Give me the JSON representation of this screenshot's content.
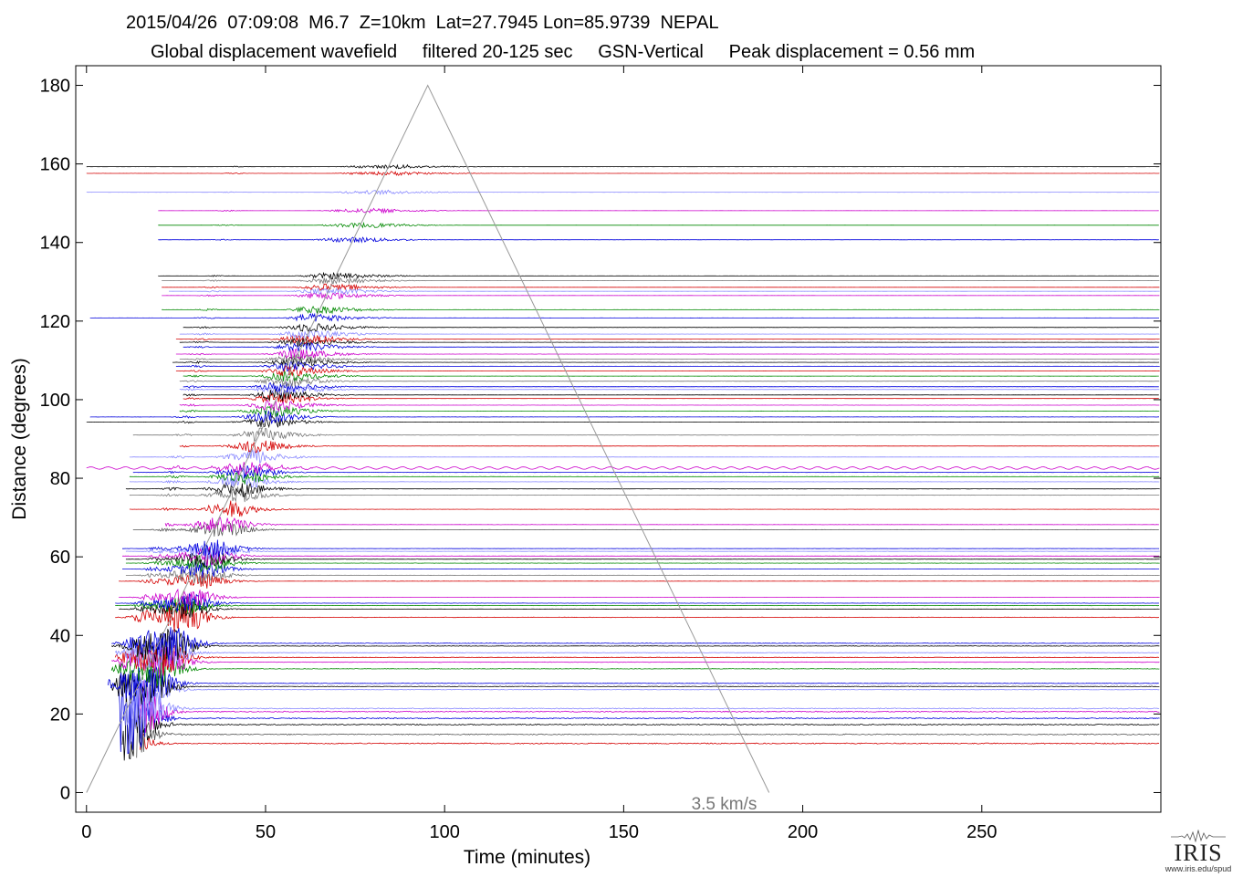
{
  "header": {
    "line1": "2015/04/26  07:09:08  M6.7  Z=10km  Lat=27.7945 Lon=85.9739  NEPAL",
    "line2": "Global displacement wavefield     filtered 20-125 sec     GSN-Vertical     Peak displacement = 0.56 mm"
  },
  "chart_data": {
    "type": "line",
    "title": "2015/04/26  07:09:08  M6.7  Z=10km  Lat=27.7945 Lon=85.9739  NEPAL",
    "subtitle": "Global displacement wavefield     filtered 20-125 sec     GSN-Vertical     Peak displacement = 0.56 mm",
    "xlabel": "Time (minutes)",
    "ylabel": "Distance (degrees)",
    "xlim": [
      -3,
      300
    ],
    "ylim": [
      -5,
      185
    ],
    "x_ticks": [
      0,
      50,
      100,
      150,
      200,
      250
    ],
    "y_ticks": [
      0,
      20,
      40,
      60,
      80,
      100,
      120,
      140,
      160,
      180
    ],
    "x_tick_labels": [
      "0",
      "50",
      "100",
      "150",
      "200",
      "250"
    ],
    "y_tick_labels": [
      "0",
      "20",
      "40",
      "60",
      "80",
      "100",
      "120",
      "140",
      "160",
      "180"
    ],
    "grid": false,
    "trace_colors": [
      "#000000",
      "#d40000",
      "#0000dd",
      "#008800",
      "#cc00cc",
      "#8888ff",
      "#777777"
    ],
    "reference_line": {
      "label": "3.5 km/s",
      "color": "#999999",
      "points": [
        [
          0,
          0
        ],
        [
          95.3,
          180
        ],
        [
          190.6,
          0
        ]
      ]
    },
    "stations": [
      {
        "distance": 12.5,
        "start": 15,
        "color": "#d40000"
      },
      {
        "distance": 14.8,
        "start": 14,
        "color": "#555555"
      },
      {
        "distance": 17.3,
        "start": 10,
        "color": "#000000"
      },
      {
        "distance": 18.9,
        "start": 9,
        "color": "#0000dd"
      },
      {
        "distance": 20.6,
        "start": 14,
        "color": "#cc00cc"
      },
      {
        "distance": 21.4,
        "start": 10,
        "color": "#8888ff"
      },
      {
        "distance": 26.2,
        "start": 12,
        "color": "#8888ff"
      },
      {
        "distance": 27.0,
        "start": 7,
        "color": "#000000"
      },
      {
        "distance": 27.8,
        "start": 6,
        "color": "#0000dd"
      },
      {
        "distance": 31.5,
        "start": 7,
        "color": "#008800"
      },
      {
        "distance": 33.2,
        "start": 7,
        "color": "#cc00cc"
      },
      {
        "distance": 34.4,
        "start": 8,
        "color": "#d40000"
      },
      {
        "distance": 35.6,
        "start": 8,
        "color": "#8888ff"
      },
      {
        "distance": 37.3,
        "start": 7,
        "color": "#000000"
      },
      {
        "distance": 38.0,
        "start": 7,
        "color": "#0000dd"
      },
      {
        "distance": 44.6,
        "start": 8,
        "color": "#d40000"
      },
      {
        "distance": 46.7,
        "start": 9,
        "color": "#000000"
      },
      {
        "distance": 47.6,
        "start": 8,
        "color": "#008800"
      },
      {
        "distance": 48.2,
        "start": 8,
        "color": "#0000dd"
      },
      {
        "distance": 49.7,
        "start": 9,
        "color": "#cc00cc"
      },
      {
        "distance": 53.8,
        "start": 9,
        "color": "#d40000"
      },
      {
        "distance": 55.3,
        "start": 11,
        "color": "#777777"
      },
      {
        "distance": 56.9,
        "start": 10,
        "color": "#0000dd"
      },
      {
        "distance": 58.4,
        "start": 11,
        "color": "#008800"
      },
      {
        "distance": 59.4,
        "start": 11,
        "color": "#000000"
      },
      {
        "distance": 60.2,
        "start": 10,
        "color": "#cc00cc"
      },
      {
        "distance": 61.4,
        "start": 11,
        "color": "#8888ff"
      },
      {
        "distance": 62.1,
        "start": 10,
        "color": "#0000dd"
      },
      {
        "distance": 66.9,
        "start": 13,
        "color": "#555555"
      },
      {
        "distance": 68.2,
        "start": 22,
        "color": "#cc00cc"
      },
      {
        "distance": 72.1,
        "start": 12,
        "color": "#d40000"
      },
      {
        "distance": 75.7,
        "start": 12,
        "color": "#777777"
      },
      {
        "distance": 77.3,
        "start": 11,
        "color": "#000000"
      },
      {
        "distance": 79.1,
        "start": 12,
        "color": "#8888ff"
      },
      {
        "distance": 80.4,
        "start": 12,
        "color": "#008800"
      },
      {
        "distance": 81.5,
        "start": 13,
        "color": "#0000dd"
      },
      {
        "distance": 82.6,
        "start": 0,
        "color": "#cc00cc"
      },
      {
        "distance": 85.4,
        "start": 12,
        "color": "#8888ff"
      },
      {
        "distance": 88.2,
        "start": 26,
        "color": "#d40000"
      },
      {
        "distance": 91.0,
        "start": 13,
        "color": "#777777"
      },
      {
        "distance": 94.3,
        "start": 0,
        "color": "#000000"
      },
      {
        "distance": 95.6,
        "start": 1,
        "color": "#0000dd"
      },
      {
        "distance": 97.1,
        "start": 26,
        "color": "#008800"
      },
      {
        "distance": 98.6,
        "start": 26,
        "color": "#cc00cc"
      },
      {
        "distance": 100.3,
        "start": 27,
        "color": "#d40000"
      },
      {
        "distance": 101.2,
        "start": 27,
        "color": "#000000"
      },
      {
        "distance": 102.6,
        "start": 26,
        "color": "#8888ff"
      },
      {
        "distance": 103.3,
        "start": 27,
        "color": "#0000dd"
      },
      {
        "distance": 104.7,
        "start": 26,
        "color": "#777777"
      },
      {
        "distance": 106.0,
        "start": 27,
        "color": "#008800"
      },
      {
        "distance": 107.3,
        "start": 25,
        "color": "#d40000"
      },
      {
        "distance": 108.5,
        "start": 25,
        "color": "#0000dd"
      },
      {
        "distance": 109.5,
        "start": 24,
        "color": "#000000"
      },
      {
        "distance": 110.3,
        "start": 26,
        "color": "#777777"
      },
      {
        "distance": 111.6,
        "start": 25,
        "color": "#cc00cc"
      },
      {
        "distance": 113.4,
        "start": 27,
        "color": "#0000dd"
      },
      {
        "distance": 114.6,
        "start": 26,
        "color": "#000000"
      },
      {
        "distance": 115.4,
        "start": 25,
        "color": "#d40000"
      },
      {
        "distance": 116.7,
        "start": 26,
        "color": "#8888ff"
      },
      {
        "distance": 118.4,
        "start": 27,
        "color": "#000000"
      },
      {
        "distance": 120.8,
        "start": 1,
        "color": "#0000dd"
      },
      {
        "distance": 122.9,
        "start": 21,
        "color": "#008800"
      },
      {
        "distance": 126.5,
        "start": 21,
        "color": "#cc00cc"
      },
      {
        "distance": 127.6,
        "start": 23,
        "color": "#8888ff"
      },
      {
        "distance": 128.6,
        "start": 21,
        "color": "#d40000"
      },
      {
        "distance": 130.3,
        "start": 21,
        "color": "#777777"
      },
      {
        "distance": 131.5,
        "start": 20,
        "color": "#000000"
      },
      {
        "distance": 140.7,
        "start": 20,
        "color": "#0000dd"
      },
      {
        "distance": 144.4,
        "start": 20,
        "color": "#008800"
      },
      {
        "distance": 148.1,
        "start": 20,
        "color": "#cc00cc"
      },
      {
        "distance": 152.8,
        "start": 0,
        "color": "#8888ff"
      },
      {
        "distance": 157.6,
        "start": 0,
        "color": "#d40000"
      },
      {
        "distance": 159.3,
        "start": 0,
        "color": "#000000"
      }
    ]
  },
  "logo": {
    "word": "IRIS",
    "url": "www.iris.edu/spud"
  }
}
